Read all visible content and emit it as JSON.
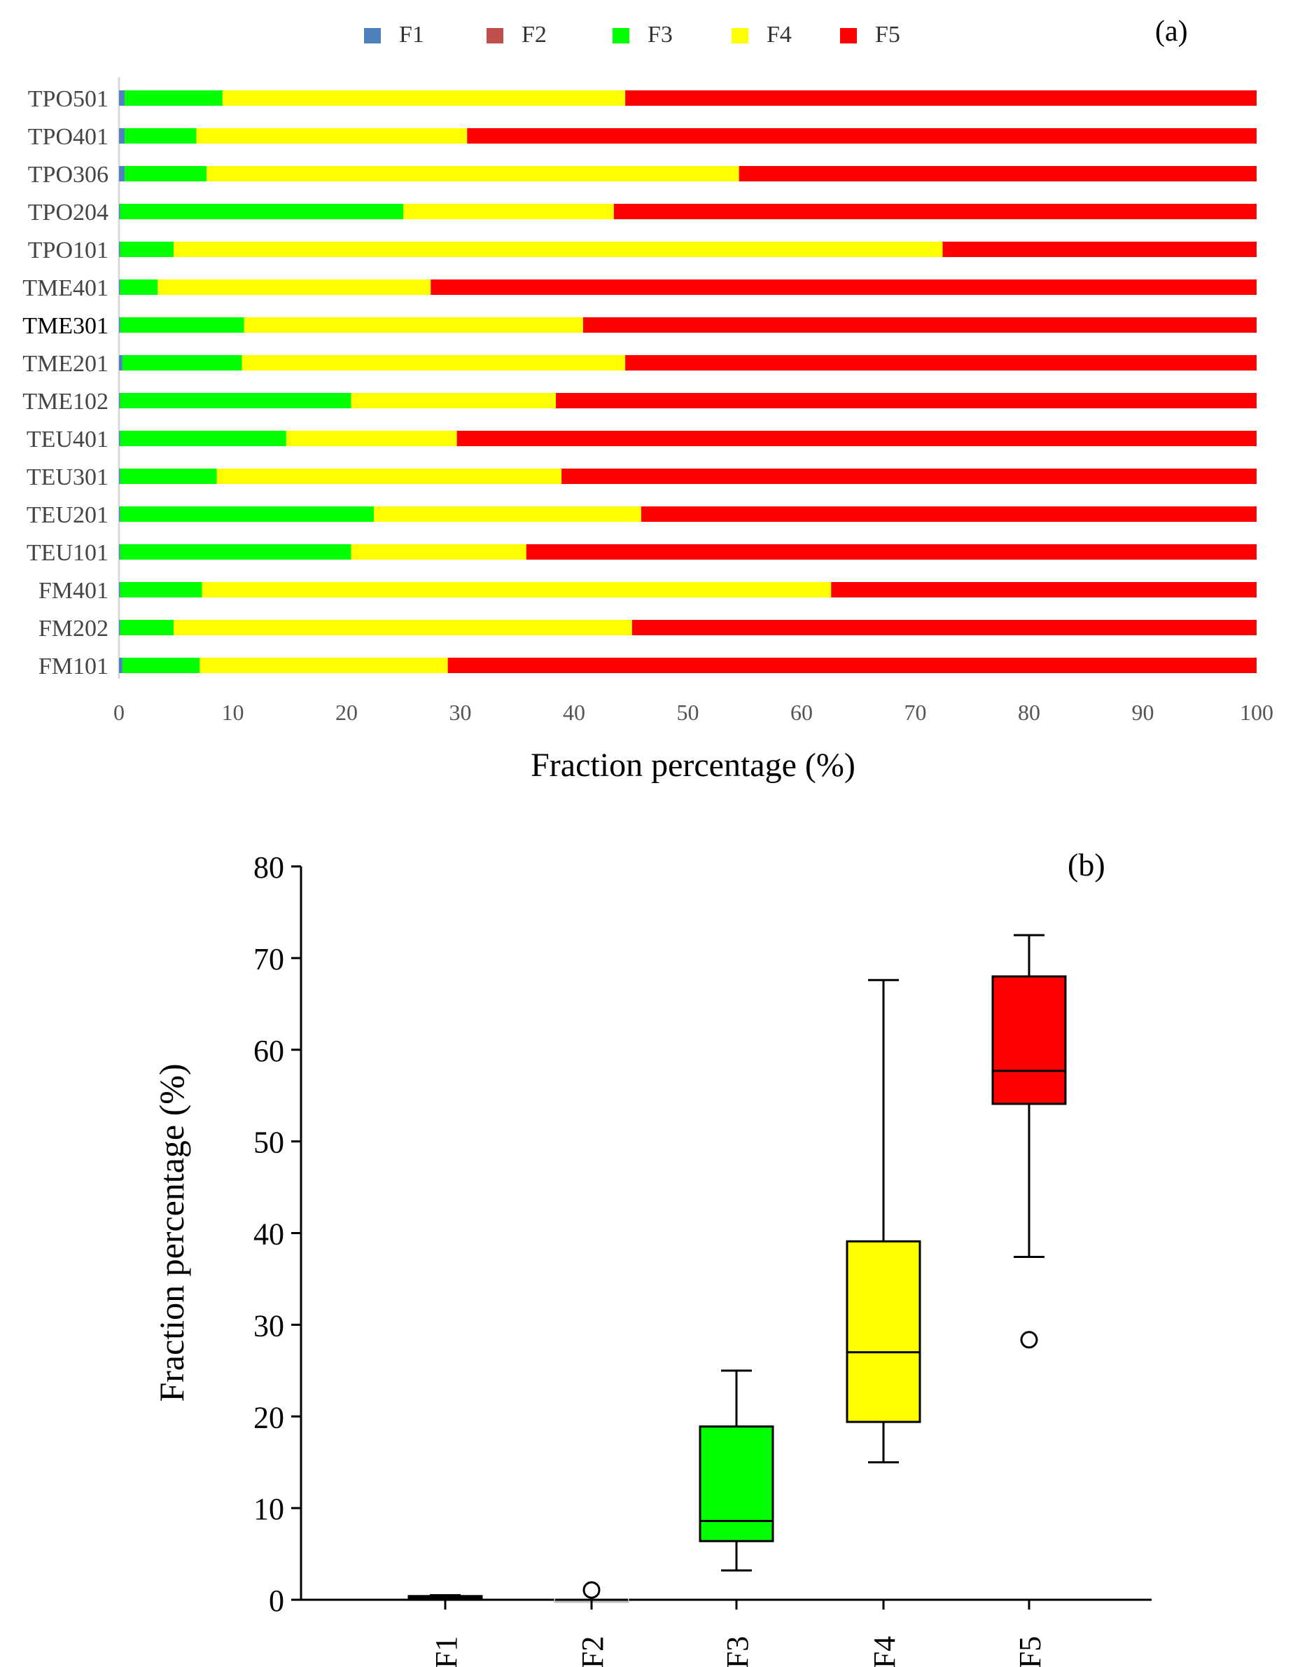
{
  "chart_data": [
    {
      "type": "bar",
      "stacked": true,
      "orientation": "horizontal",
      "panel_label": "(a)",
      "title": "",
      "xlabel": "Fraction percentage (%)",
      "ylabel": "",
      "xlim": [
        0,
        100
      ],
      "xticks": [
        "0",
        "10",
        "20",
        "30",
        "40",
        "50",
        "60",
        "70",
        "80",
        "90",
        "100"
      ],
      "legend_position": "top",
      "categories": [
        "TPO501",
        "TPO401",
        "TPO306",
        "TPO204",
        "TPO101",
        "TME401",
        "TME301",
        "TME201",
        "TME102",
        "TEU401",
        "TEU301",
        "TEU201",
        "TEU101",
        "FM401",
        "FM202",
        "FM101"
      ],
      "series": [
        {
          "name": "F1",
          "color": "#4f81bd",
          "values": [
            0.5,
            0.5,
            0.5,
            0.1,
            0.1,
            0.1,
            0.1,
            0.3,
            0.1,
            0.1,
            0.1,
            0.1,
            0.1,
            0.1,
            0.1,
            0.3
          ]
        },
        {
          "name": "F2",
          "color": "#c0504d",
          "values": [
            0,
            0,
            0,
            0,
            0,
            0,
            0,
            0,
            0,
            0,
            0,
            0,
            0,
            0,
            0,
            0
          ]
        },
        {
          "name": "F3",
          "color": "#00ff00",
          "values": [
            8.6,
            6.3,
            7.2,
            24.9,
            4.7,
            3.3,
            10.9,
            10.5,
            20.3,
            14.6,
            8.5,
            22.3,
            20.3,
            7.2,
            4.7,
            6.8
          ]
        },
        {
          "name": "F4",
          "color": "#ffff00",
          "values": [
            35.4,
            23.8,
            46.8,
            18.5,
            67.6,
            24.0,
            29.8,
            33.7,
            18.0,
            15.0,
            30.3,
            23.5,
            15.4,
            55.3,
            40.3,
            21.8
          ]
        },
        {
          "name": "F5",
          "color": "#ff0000",
          "values": [
            55.5,
            69.4,
            45.5,
            56.5,
            27.6,
            72.6,
            59.2,
            55.5,
            61.6,
            70.3,
            61.1,
            54.1,
            64.2,
            37.4,
            54.9,
            71.1
          ]
        }
      ]
    },
    {
      "type": "box",
      "panel_label": "(b)",
      "title": "",
      "xlabel": "",
      "ylabel": "Fraction percentage (%)",
      "ylim": [
        0,
        80
      ],
      "yticks": [
        "0",
        "10",
        "20",
        "30",
        "40",
        "50",
        "60",
        "70",
        "80"
      ],
      "categories": [
        "F1",
        "F2",
        "F3",
        "F4",
        "F5"
      ],
      "boxes": [
        {
          "name": "F1",
          "color": "#000000",
          "min": 0.1,
          "q1": 0.2,
          "median": 0.3,
          "q3": 0.4,
          "max": 0.5,
          "outliers": []
        },
        {
          "name": "F2",
          "color": "#bfbfbf",
          "min": 0.0,
          "q1": 0.0,
          "median": 0.0,
          "q3": 0.0,
          "max": 0.0,
          "outliers": [
            0.3
          ]
        },
        {
          "name": "F3",
          "color": "#00ff00",
          "min": 3.2,
          "q1": 6.4,
          "median": 8.6,
          "q3": 18.9,
          "max": 25.0,
          "outliers": []
        },
        {
          "name": "F4",
          "color": "#ffff00",
          "min": 15.0,
          "q1": 19.4,
          "median": 27.0,
          "q3": 39.1,
          "max": 67.6,
          "outliers": []
        },
        {
          "name": "F5",
          "color": "#ff0000",
          "min": 37.4,
          "q1": 54.1,
          "median": 57.7,
          "q3": 68.0,
          "max": 72.5,
          "outliers": [
            27.6
          ]
        }
      ]
    }
  ]
}
